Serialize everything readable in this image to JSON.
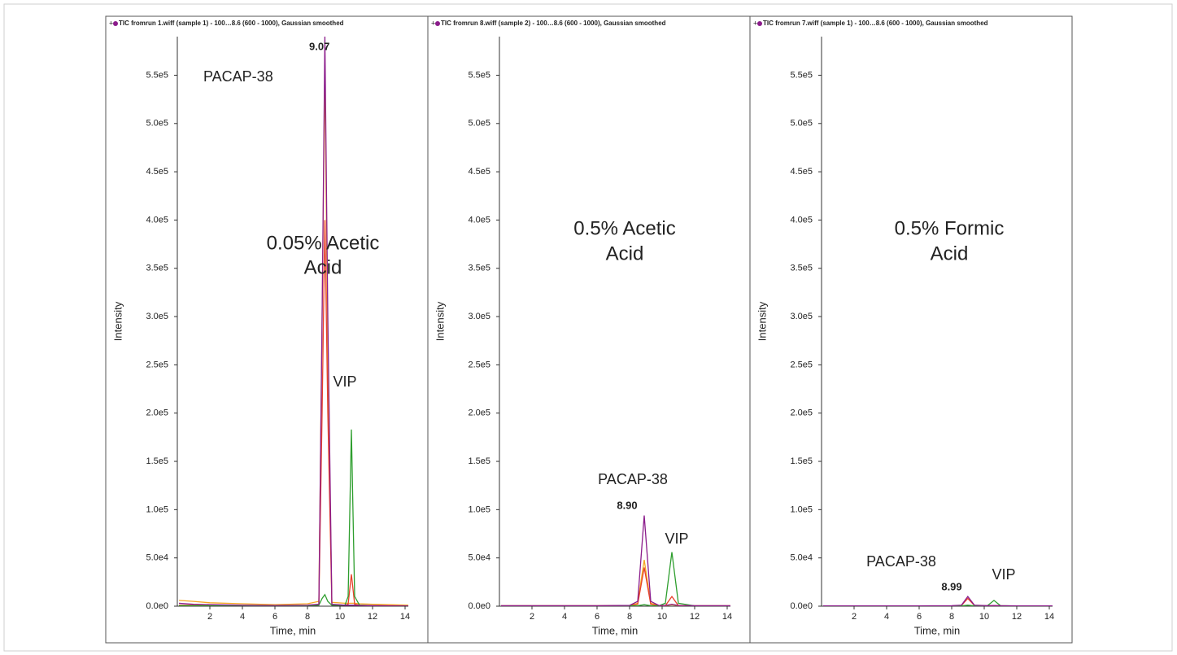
{
  "chart_data": [
    {
      "type": "line",
      "title": "TIC fromrun 1.wiff (sample 1) - 100…8.6 (600 - 1000), Gaussian smoothed",
      "xlabel": "Time, min",
      "ylabel": "Intensity",
      "xlim": [
        0,
        14.2
      ],
      "ylim": [
        0,
        590000
      ],
      "xticks": [
        2,
        4,
        6,
        8,
        10,
        12,
        14
      ],
      "yticks": [
        {
          "value": 0,
          "label": "0.0e0"
        },
        {
          "value": 50000,
          "label": "5.0e4"
        },
        {
          "value": 100000,
          "label": "1.0e5"
        },
        {
          "value": 150000,
          "label": "1.5e5"
        },
        {
          "value": 200000,
          "label": "2.0e5"
        },
        {
          "value": 250000,
          "label": "2.5e5"
        },
        {
          "value": 300000,
          "label": "3.0e5"
        },
        {
          "value": 350000,
          "label": "3.5e5"
        },
        {
          "value": 400000,
          "label": "4.0e5"
        },
        {
          "value": 450000,
          "label": "4.5e5"
        },
        {
          "value": 500000,
          "label": "5.0e5"
        },
        {
          "value": 550000,
          "label": "5.5e5"
        }
      ],
      "x": [
        0.1,
        1,
        2,
        4,
        6,
        8,
        8.7,
        8.9,
        9.07,
        9.25,
        9.5,
        10.3,
        10.5,
        10.7,
        10.9,
        11.2,
        12,
        13,
        14.2
      ],
      "series": [
        {
          "color": "#f5a623",
          "values": [
            6000,
            5000,
            3500,
            2500,
            1500,
            2500,
            5000,
            300000,
            560000,
            250000,
            4000,
            3000,
            3000,
            3000,
            3000,
            2500,
            2000,
            1500,
            1000
          ]
        },
        {
          "color": "#e8412c",
          "values": [
            1000,
            1000,
            1000,
            800,
            600,
            800,
            1500,
            200000,
            400000,
            200000,
            1500,
            1000,
            2000,
            33000,
            2000,
            1000,
            800,
            500,
            300
          ]
        },
        {
          "color": "#2e9e2e",
          "values": [
            500,
            500,
            500,
            500,
            500,
            500,
            1000,
            8000,
            12000,
            5000,
            1000,
            1000,
            10000,
            183000,
            10000,
            1000,
            500,
            300,
            200
          ]
        },
        {
          "color": "#8b1c8b",
          "values": [
            3000,
            2000,
            1500,
            1000,
            800,
            1000,
            2000,
            300000,
            590000,
            300000,
            2000,
            1000,
            1000,
            1000,
            1000,
            800,
            500,
            300,
            200
          ]
        }
      ],
      "annotations": [
        "PACAP-38",
        "9.07",
        "0.05% Acetic",
        "Acid",
        "VIP"
      ]
    },
    {
      "type": "line",
      "title": "TIC fromrun 8.wiff (sample 2) - 100…8.6 (600 - 1000), Gaussian smoothed",
      "xlabel": "Time, min",
      "ylabel": "Intensity",
      "xlim": [
        0,
        14.2
      ],
      "ylim": [
        0,
        590000
      ],
      "xticks": [
        2,
        4,
        6,
        8,
        10,
        12,
        14
      ],
      "yticks": [
        {
          "value": 0,
          "label": "0.0e0"
        },
        {
          "value": 50000,
          "label": "5.0e4"
        },
        {
          "value": 100000,
          "label": "1.0e5"
        },
        {
          "value": 150000,
          "label": "1.5e5"
        },
        {
          "value": 200000,
          "label": "2.0e5"
        },
        {
          "value": 250000,
          "label": "2.5e5"
        },
        {
          "value": 300000,
          "label": "3.0e5"
        },
        {
          "value": 350000,
          "label": "3.5e5"
        },
        {
          "value": 400000,
          "label": "4.0e5"
        },
        {
          "value": 450000,
          "label": "4.5e5"
        },
        {
          "value": 500000,
          "label": "5.0e5"
        },
        {
          "value": 550000,
          "label": "5.5e5"
        }
      ],
      "x": [
        0.1,
        2,
        4,
        6,
        8,
        8.5,
        8.9,
        9.3,
        9.8,
        10.2,
        10.6,
        11.0,
        12,
        14.2
      ],
      "series": [
        {
          "color": "#f5a623",
          "values": [
            500,
            500,
            500,
            500,
            700,
            3000,
            48000,
            3000,
            700,
            600,
            1500,
            600,
            500,
            500
          ]
        },
        {
          "color": "#e8412c",
          "values": [
            300,
            300,
            300,
            300,
            500,
            2000,
            40000,
            2000,
            500,
            600,
            10000,
            600,
            300,
            300
          ]
        },
        {
          "color": "#2e9e2e",
          "values": [
            200,
            200,
            200,
            200,
            300,
            500,
            1500,
            500,
            400,
            3000,
            56000,
            3000,
            300,
            200
          ]
        },
        {
          "color": "#8b1c8b",
          "values": [
            500,
            500,
            500,
            500,
            800,
            5000,
            94000,
            5000,
            800,
            800,
            2000,
            800,
            500,
            500
          ]
        }
      ],
      "annotations": [
        "0.5% Acetic",
        "Acid",
        "PACAP-38",
        "8.90",
        "VIP"
      ]
    },
    {
      "type": "line",
      "title": "TIC fromrun 7.wiff (sample 1) - 100…8.6 (600 - 1000), Gaussian smoothed",
      "xlabel": "Time, min",
      "ylabel": "Intensity",
      "xlim": [
        0,
        14.2
      ],
      "ylim": [
        0,
        590000
      ],
      "xticks": [
        2,
        4,
        6,
        8,
        10,
        12,
        14
      ],
      "yticks": [
        {
          "value": 0,
          "label": "0.0e0"
        },
        {
          "value": 50000,
          "label": "5.0e4"
        },
        {
          "value": 100000,
          "label": "1.0e5"
        },
        {
          "value": 150000,
          "label": "1.5e5"
        },
        {
          "value": 200000,
          "label": "2.0e5"
        },
        {
          "value": 250000,
          "label": "2.5e5"
        },
        {
          "value": 300000,
          "label": "3.0e5"
        },
        {
          "value": 350000,
          "label": "3.5e5"
        },
        {
          "value": 400000,
          "label": "4.0e5"
        },
        {
          "value": 450000,
          "label": "4.5e5"
        },
        {
          "value": 500000,
          "label": "5.0e5"
        },
        {
          "value": 550000,
          "label": "5.5e5"
        }
      ],
      "x": [
        0.1,
        2,
        4,
        6,
        8,
        8.6,
        8.99,
        9.4,
        10.2,
        10.6,
        11.0,
        12,
        14.2
      ],
      "series": [
        {
          "color": "#e8412c",
          "values": [
            200,
            200,
            200,
            200,
            300,
            800,
            8000,
            800,
            400,
            500,
            400,
            200,
            200
          ]
        },
        {
          "color": "#2e9e2e",
          "values": [
            100,
            100,
            100,
            100,
            200,
            300,
            1000,
            300,
            500,
            6000,
            500,
            200,
            100
          ]
        },
        {
          "color": "#8b1c8b",
          "values": [
            300,
            300,
            300,
            300,
            500,
            1000,
            10000,
            1000,
            500,
            800,
            500,
            300,
            300
          ]
        }
      ],
      "annotations": [
        "0.5% Formic",
        "Acid",
        "PACAP-38",
        "8.99",
        "VIP"
      ]
    }
  ]
}
